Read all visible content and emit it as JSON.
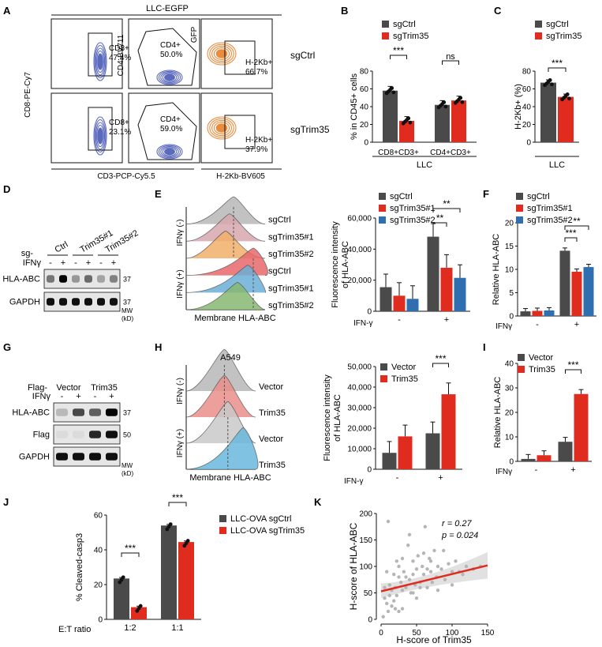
{
  "colors": {
    "ctrl": "#4a4a4a",
    "red": "#e02b1f",
    "blue": "#2f6fb0",
    "contour": "#4b5ab8",
    "orange": "#e8802a"
  },
  "panels": {
    "A": "A",
    "B": "B",
    "C": "C",
    "D": "D",
    "E": "E",
    "F": "F",
    "G": "G",
    "H": "H",
    "I": "I",
    "J": "J",
    "K": "K"
  },
  "flow": {
    "header": "LLC-EGFP",
    "row_labels": [
      "sgCtrl",
      "sgTrim35"
    ],
    "ylabels": [
      "CD8-PE-Cy7",
      "CD4-BV711",
      "GFP"
    ],
    "xlabels": [
      "CD3-PCP-Cy5.5",
      "H-2Kb-BV605"
    ],
    "gates": [
      [
        "CD8+",
        "47.4%"
      ],
      [
        "CD4+",
        "50.0%"
      ],
      [
        "H-2Kb+",
        "66.7%"
      ],
      [
        "CD8+",
        "23.1%"
      ],
      [
        "CD4+",
        "59.0%"
      ],
      [
        "H-2Kb+",
        "37.9%"
      ]
    ]
  },
  "sig": {
    "p001": "***",
    "p01": "**",
    "ns": "ns"
  },
  "chart_data": [
    {
      "panel": "B",
      "type": "bar",
      "ylabel": "% in CD45+ cells",
      "xlabel": "LLC",
      "categories": [
        "CD8+CD3+",
        "CD4+CD3+"
      ],
      "ylim": [
        0,
        80
      ],
      "yticks": [
        "0",
        "20",
        "40",
        "60",
        "80"
      ],
      "series": [
        {
          "name": "sgCtrl",
          "values": [
            58,
            42
          ]
        },
        {
          "name": "sgTrim35",
          "values": [
            24,
            47
          ]
        }
      ],
      "sig": [
        "***",
        "ns"
      ]
    },
    {
      "panel": "C",
      "type": "bar",
      "ylabel": "H-2Kb+ (%)",
      "xlabel": "LLC",
      "categories": [
        ""
      ],
      "ylim": [
        0,
        80
      ],
      "yticks": [
        "0",
        "20",
        "40",
        "60",
        "80"
      ],
      "series": [
        {
          "name": "sgCtrl",
          "values": [
            67
          ]
        },
        {
          "name": "sgTrim35",
          "values": [
            51
          ]
        }
      ],
      "sig": [
        "***"
      ]
    },
    {
      "panel": "E",
      "type": "bar",
      "ylabel": "Fluorescence intensity of HLA-ABC",
      "xlabel": "IFN-γ",
      "categories": [
        "-",
        "+"
      ],
      "ylim": [
        0,
        60000
      ],
      "yticks": [
        "0",
        "20,000",
        "40,000",
        "60,000"
      ],
      "series": [
        {
          "name": "sgCtrl",
          "values": [
            15500,
            48000
          ]
        },
        {
          "name": "sgTrim35#1",
          "values": [
            10000,
            28000
          ]
        },
        {
          "name": "sgTrim35#2",
          "values": [
            8000,
            21500
          ]
        }
      ],
      "sig": [
        "**",
        "**"
      ]
    },
    {
      "panel": "F",
      "type": "bar",
      "ylabel": "Relative HLA-ABC",
      "xlabel": "IFNγ",
      "categories": [
        "-",
        "+"
      ],
      "ylim": [
        0,
        20
      ],
      "yticks": [
        "0",
        "5",
        "10",
        "15",
        "20"
      ],
      "series": [
        {
          "name": "sgCtrl",
          "values": [
            1,
            14
          ]
        },
        {
          "name": "sgTrim35#1",
          "values": [
            1.1,
            9.5
          ]
        },
        {
          "name": "sgTrim35#2",
          "values": [
            1.2,
            10.5
          ]
        }
      ],
      "sig": [
        "***",
        "**"
      ]
    },
    {
      "panel": "H",
      "type": "bar",
      "ylabel": "Fluorescence intensity of HLA-ABC",
      "xlabel": "IFN-γ",
      "categories": [
        "-",
        "+"
      ],
      "ylim": [
        0,
        50000
      ],
      "yticks": [
        "0",
        "10,000",
        "20,000",
        "30,000",
        "40,000",
        "50,000"
      ],
      "series": [
        {
          "name": "Vector",
          "values": [
            8000,
            17500
          ]
        },
        {
          "name": "Trim35",
          "values": [
            16000,
            36500
          ]
        }
      ],
      "sig": [
        "***"
      ]
    },
    {
      "panel": "I",
      "type": "bar",
      "ylabel": "Relative HLA-ABC",
      "xlabel": "IFNγ",
      "categories": [
        "-",
        "+"
      ],
      "ylim": [
        0,
        40
      ],
      "yticks": [
        "0",
        "10",
        "20",
        "30",
        "40"
      ],
      "series": [
        {
          "name": "Vector",
          "values": [
            1,
            8
          ]
        },
        {
          "name": "Trim35",
          "values": [
            2.5,
            27.5
          ]
        }
      ],
      "sig": [
        "***"
      ]
    },
    {
      "panel": "J",
      "type": "bar",
      "ylabel": "% Cleaved-casp3",
      "xlabel": "E:T ratio",
      "categories": [
        "1:2",
        "1:1"
      ],
      "ylim": [
        0,
        60
      ],
      "yticks": [
        "0",
        "20",
        "40",
        "60"
      ],
      "series": [
        {
          "name": "LLC-OVA sgCtrl",
          "values": [
            23.5,
            54
          ]
        },
        {
          "name": "LLC-OVA sgTrim35",
          "values": [
            7,
            44.5
          ]
        }
      ],
      "sig": [
        "***",
        "***"
      ]
    },
    {
      "panel": "K",
      "type": "scatter",
      "xlabel": "H-score of Trim35",
      "ylabel": "H-score of HLA-ABC",
      "xlim": [
        0,
        150
      ],
      "ylim": [
        0,
        200
      ],
      "xticks": [
        "0",
        "50",
        "100",
        "150"
      ],
      "yticks": [
        "0",
        "50",
        "100",
        "150",
        "200"
      ],
      "r_text": "r = 0.27",
      "p_text": "p = 0.024",
      "fit": {
        "x0": 0,
        "y0": 53,
        "x1": 150,
        "y1": 102
      },
      "points": [
        [
          3,
          5
        ],
        [
          5,
          40
        ],
        [
          8,
          30
        ],
        [
          10,
          185
        ],
        [
          12,
          65
        ],
        [
          15,
          55
        ],
        [
          18,
          85
        ],
        [
          20,
          60
        ],
        [
          22,
          45
        ],
        [
          25,
          100
        ],
        [
          28,
          70
        ],
        [
          30,
          55
        ],
        [
          32,
          90
        ],
        [
          35,
          60
        ],
        [
          38,
          140
        ],
        [
          40,
          75
        ],
        [
          42,
          50
        ],
        [
          45,
          110
        ],
        [
          48,
          65
        ],
        [
          50,
          95
        ],
        [
          52,
          120
        ],
        [
          55,
          70
        ],
        [
          58,
          100
        ],
        [
          60,
          85
        ],
        [
          62,
          175
        ],
        [
          65,
          60
        ],
        [
          68,
          115
        ],
        [
          70,
          90
        ],
        [
          72,
          70
        ],
        [
          75,
          130
        ],
        [
          78,
          80
        ],
        [
          80,
          100
        ],
        [
          85,
          95
        ],
        [
          90,
          75
        ],
        [
          95,
          105
        ],
        [
          100,
          65
        ],
        [
          105,
          110
        ],
        [
          110,
          90
        ],
        [
          115,
          85
        ],
        [
          120,
          100
        ],
        [
          20,
          20
        ],
        [
          25,
          15
        ],
        [
          30,
          20
        ],
        [
          15,
          25
        ],
        [
          10,
          15
        ],
        [
          35,
          80
        ],
        [
          45,
          50
        ],
        [
          55,
          60
        ],
        [
          65,
          95
        ],
        [
          5,
          60
        ],
        [
          40,
          160
        ],
        [
          50,
          40
        ],
        [
          60,
          125
        ],
        [
          70,
          110
        ],
        [
          30,
          115
        ],
        [
          25,
          80
        ],
        [
          8,
          90
        ],
        [
          12,
          45
        ],
        [
          18,
          35
        ],
        [
          22,
          110
        ],
        [
          45,
          85
        ],
        [
          80,
          55
        ],
        [
          88,
          130
        ],
        [
          100,
          90
        ],
        [
          130,
          95
        ],
        [
          140,
          100
        ]
      ]
    }
  ],
  "D": {
    "sg": "sg-",
    "groups": [
      "Ctrl",
      "Trim35#1",
      "Trim35#2"
    ],
    "ifn": "IFNγ",
    "signs": [
      "-",
      "+",
      "-",
      "+",
      "-",
      "+"
    ],
    "bands": [
      "HLA-ABC",
      "GAPDH"
    ],
    "mw": [
      "37",
      "37"
    ],
    "mw_unit": [
      "MW",
      "(kD)"
    ],
    "intensity": [
      [
        0.5,
        1.0,
        0.35,
        0.55,
        0.3,
        0.45
      ],
      [
        0.95,
        0.95,
        0.95,
        0.95,
        0.95,
        0.95
      ]
    ]
  },
  "G": {
    "flag": "Flag-",
    "groups": [
      "Vector",
      "Trim35"
    ],
    "ifn": "IFNγ",
    "signs": [
      "-",
      "+",
      "-",
      "+"
    ],
    "bands": [
      "HLA-ABC",
      "Flag",
      "GAPDH"
    ],
    "mw": [
      "37",
      "50"
    ],
    "mw_unit": [
      "MW",
      "(kD)"
    ],
    "intensity": [
      [
        0.2,
        0.7,
        0.6,
        1.0
      ],
      [
        0.05,
        0.05,
        0.85,
        0.95
      ],
      [
        0.95,
        0.95,
        0.95,
        0.95
      ]
    ]
  },
  "E_hist": {
    "ylabels": [
      "IFNγ (-)",
      "IFNγ (+)"
    ],
    "xlabel": "Membrane HLA-ABC",
    "rows": [
      "sgCtrl",
      "sgTrim35#1",
      "sgTrim35#2",
      "sgCtrl",
      "sgTrim35#1",
      "sgTrim35#2"
    ]
  },
  "H_hist": {
    "title": "A549",
    "ylabels": [
      "IFNγ (-)",
      "IFNγ (+)"
    ],
    "xlabel": "Membrane HLA-ABC",
    "rows": [
      "Vector",
      "Trim35",
      "Vector",
      "Trim35"
    ]
  }
}
